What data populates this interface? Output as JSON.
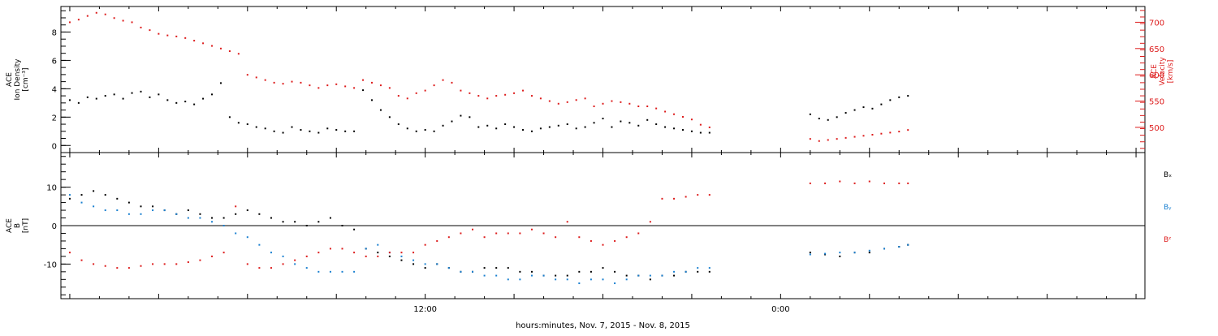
{
  "chart_data": [
    {
      "type": "scatter",
      "panel": "top",
      "ylabel_left": [
        "ACE",
        "Ion Density",
        "[cm⁻³]"
      ],
      "ylabel_right": [
        "ACE",
        "Velocity",
        "[km/s]"
      ],
      "ylim_left": [
        -0.5,
        9.8
      ],
      "ylim_right": [
        452,
        730
      ],
      "yticks_left": [
        "0",
        "2",
        "4",
        "6",
        "8"
      ],
      "yticks_right": [
        "500",
        "550",
        "600",
        "650",
        "700"
      ],
      "series": [
        {
          "color": "#000000",
          "axis": "left",
          "x": [
            0.0,
            0.3,
            0.6,
            0.9,
            1.2,
            1.5,
            1.8,
            2.1,
            2.4,
            2.7,
            3.0,
            3.3,
            3.6,
            3.9,
            4.2,
            4.5,
            4.8,
            5.1,
            5.4,
            5.7,
            6.0,
            6.3,
            6.6,
            6.9,
            7.2,
            7.5,
            7.8,
            8.1,
            8.4,
            8.7,
            9.0,
            9.3,
            9.6,
            9.9,
            10.2,
            10.5,
            10.8,
            11.1,
            11.4,
            11.7,
            12.0,
            12.3,
            12.6,
            12.9,
            13.2,
            13.5,
            13.8,
            14.1,
            14.4,
            14.7,
            15.0,
            15.3,
            15.6,
            15.9,
            16.2,
            16.5,
            16.8,
            17.1,
            17.4,
            17.7,
            18.0,
            18.3,
            18.6,
            18.9,
            19.2,
            19.5,
            19.8,
            20.1,
            20.4,
            20.7,
            21.0,
            21.3,
            21.6,
            25.0,
            25.3,
            25.6,
            25.9,
            26.2,
            26.5,
            26.8,
            27.1,
            27.4,
            27.7,
            28.0,
            28.3
          ],
          "values": [
            3.2,
            3.0,
            3.4,
            3.3,
            3.5,
            3.6,
            3.3,
            3.7,
            3.8,
            3.4,
            3.6,
            3.2,
            3.0,
            3.1,
            2.9,
            3.3,
            3.6,
            4.4,
            2.0,
            1.6,
            1.5,
            1.3,
            1.2,
            1.0,
            0.9,
            1.3,
            1.1,
            1.0,
            0.9,
            1.2,
            1.1,
            1.0,
            1.0,
            3.9,
            3.2,
            2.5,
            2.0,
            1.5,
            1.2,
            1.0,
            1.1,
            1.0,
            1.4,
            1.7,
            2.1,
            2.0,
            1.3,
            1.4,
            1.2,
            1.5,
            1.3,
            1.1,
            1.0,
            1.2,
            1.3,
            1.4,
            1.5,
            1.2,
            1.3,
            1.6,
            1.9,
            1.3,
            1.7,
            1.6,
            1.4,
            1.8,
            1.5,
            1.3,
            1.2,
            1.1,
            1.0,
            0.9,
            0.9,
            2.2,
            1.9,
            1.8,
            2.0,
            2.3,
            2.5,
            2.7,
            2.6,
            2.9,
            3.2,
            3.4,
            3.5
          ]
        },
        {
          "color": "#dd1c1c",
          "axis": "right",
          "x": [
            0.0,
            0.3,
            0.6,
            0.9,
            1.2,
            1.5,
            1.8,
            2.1,
            2.4,
            2.7,
            3.0,
            3.3,
            3.6,
            3.9,
            4.2,
            4.5,
            4.8,
            5.1,
            5.4,
            5.7,
            6.0,
            6.3,
            6.6,
            6.9,
            7.2,
            7.5,
            7.8,
            8.1,
            8.4,
            8.7,
            9.0,
            9.3,
            9.6,
            9.9,
            10.2,
            10.5,
            10.8,
            11.1,
            11.4,
            11.7,
            12.0,
            12.3,
            12.6,
            12.9,
            13.2,
            13.5,
            13.8,
            14.1,
            14.4,
            14.7,
            15.0,
            15.3,
            15.6,
            15.9,
            16.2,
            16.5,
            16.8,
            17.1,
            17.4,
            17.7,
            18.0,
            18.3,
            18.6,
            18.9,
            19.2,
            19.5,
            19.8,
            20.1,
            20.4,
            20.7,
            21.0,
            21.3,
            21.6,
            25.0,
            25.3,
            25.6,
            25.9,
            26.2,
            26.5,
            26.8,
            27.1,
            27.4,
            27.7,
            28.0,
            28.3
          ],
          "values": [
            700,
            705,
            712,
            718,
            715,
            708,
            703,
            700,
            690,
            685,
            678,
            675,
            673,
            670,
            665,
            660,
            655,
            650,
            645,
            640,
            600,
            595,
            590,
            585,
            583,
            587,
            585,
            580,
            575,
            580,
            582,
            578,
            575,
            590,
            585,
            580,
            575,
            560,
            555,
            565,
            570,
            580,
            590,
            585,
            570,
            565,
            560,
            555,
            560,
            562,
            565,
            570,
            560,
            555,
            550,
            545,
            548,
            552,
            555,
            540,
            545,
            550,
            548,
            545,
            540,
            540,
            536,
            530,
            525,
            520,
            515,
            505,
            500,
            478,
            474,
            476,
            478,
            480,
            482,
            484,
            486,
            488,
            490,
            492,
            495
          ]
        }
      ]
    },
    {
      "type": "scatter",
      "panel": "bottom",
      "ylabel_left": [
        "ACE",
        "B",
        "[nT]"
      ],
      "ylim": [
        -19,
        19
      ],
      "yticks": [
        "-10",
        "0",
        "10"
      ],
      "legend": [
        "Bₓ",
        "Bᵧ",
        "Bᶻ"
      ],
      "legend_position": "right",
      "series": [
        {
          "name": "Bₓ",
          "color": "#000000",
          "x": [
            0.0,
            0.4,
            0.8,
            1.2,
            1.6,
            2.0,
            2.4,
            2.8,
            3.2,
            3.6,
            4.0,
            4.4,
            4.8,
            5.2,
            5.6,
            6.0,
            6.4,
            6.8,
            7.2,
            7.6,
            8.0,
            8.4,
            8.8,
            9.2,
            9.6,
            10.0,
            10.4,
            10.8,
            11.2,
            11.6,
            12.0,
            12.4,
            12.8,
            13.2,
            13.6,
            14.0,
            14.4,
            14.8,
            15.2,
            15.6,
            16.0,
            16.4,
            16.8,
            17.2,
            17.6,
            18.0,
            18.4,
            18.8,
            19.2,
            19.6,
            20.0,
            20.4,
            20.8,
            21.2,
            21.6,
            25.0,
            25.5,
            26.0,
            26.5,
            27.0,
            27.5,
            28.0,
            28.3
          ],
          "values": [
            7,
            8,
            9,
            8,
            7,
            6,
            5,
            5,
            4,
            3,
            4,
            3,
            2,
            2,
            3,
            4,
            3,
            2,
            1,
            1,
            0,
            1,
            2,
            0,
            -1,
            -6,
            -7,
            -8,
            -9,
            -10,
            -11,
            -10,
            -11,
            -12,
            -12,
            -11,
            -11,
            -11,
            -12,
            -12,
            -13,
            -13,
            -13,
            -12,
            -12,
            -11,
            -12,
            -13,
            -13,
            -14,
            -13,
            -13,
            -12,
            -12,
            -12,
            -7,
            -7.5,
            -8,
            -7,
            -7,
            -6,
            -5.5,
            -5
          ]
        },
        {
          "name": "Bᵧ",
          "color": "#1a80d0",
          "x": [
            0.0,
            0.4,
            0.8,
            1.2,
            1.6,
            2.0,
            2.4,
            2.8,
            3.2,
            3.6,
            4.0,
            4.4,
            4.8,
            5.2,
            5.6,
            6.0,
            6.4,
            6.8,
            7.2,
            7.6,
            8.0,
            8.4,
            8.8,
            9.2,
            9.6,
            10.0,
            10.4,
            10.8,
            11.2,
            11.6,
            12.0,
            12.4,
            12.8,
            13.2,
            13.6,
            14.0,
            14.4,
            14.8,
            15.2,
            15.6,
            16.0,
            16.4,
            16.8,
            17.2,
            17.6,
            18.0,
            18.4,
            18.8,
            19.2,
            19.6,
            20.0,
            20.4,
            20.8,
            21.2,
            21.6,
            25.0,
            25.5,
            26.0,
            26.5,
            27.0,
            27.5,
            28.0,
            28.3
          ],
          "values": [
            8,
            6,
            5,
            4,
            4,
            3,
            3,
            4,
            4,
            3,
            2,
            2,
            1,
            0,
            -2,
            -3,
            -5,
            -7,
            -8,
            -10,
            -11,
            -12,
            -12,
            -12,
            -12,
            -6,
            -5,
            -7,
            -8,
            -9,
            -10,
            -10,
            -11,
            -12,
            -12,
            -13,
            -13,
            -14,
            -14,
            -13,
            -13,
            -14,
            -14,
            -15,
            -14,
            -14,
            -15,
            -14,
            -13,
            -13,
            -13,
            -12,
            -12,
            -11,
            -11,
            -7.5,
            -7.3,
            -7,
            -7,
            -6.5,
            -6,
            -5.5,
            -5
          ]
        },
        {
          "name": "Bᶻ",
          "color": "#dd1c1c",
          "x": [
            0.0,
            0.4,
            0.8,
            1.2,
            1.6,
            2.0,
            2.4,
            2.8,
            3.2,
            3.6,
            4.0,
            4.4,
            4.8,
            5.2,
            5.6,
            6.0,
            6.4,
            6.8,
            7.2,
            7.6,
            8.0,
            8.4,
            8.8,
            9.2,
            9.6,
            10.0,
            10.4,
            10.8,
            11.2,
            11.6,
            12.0,
            12.4,
            12.8,
            13.2,
            13.6,
            14.0,
            14.4,
            14.8,
            15.2,
            15.6,
            16.0,
            16.4,
            16.8,
            17.2,
            17.6,
            18.0,
            18.4,
            18.8,
            19.2,
            19.6,
            20.0,
            20.4,
            20.8,
            21.2,
            21.6,
            25.0,
            25.5,
            26.0,
            26.5,
            27.0,
            27.5,
            28.0,
            28.3
          ],
          "values": [
            -7,
            -9,
            -10,
            -10.5,
            -11,
            -11,
            -10.5,
            -10,
            -10,
            -10,
            -9.5,
            -9,
            -8,
            -7,
            5,
            -10,
            -11,
            -11,
            -10,
            -9,
            -8,
            -7,
            -6,
            -6,
            -7,
            -8,
            -8,
            -7,
            -7,
            -7,
            -5,
            -4,
            -3,
            -2,
            -1,
            -3,
            -2,
            -2,
            -2,
            -1,
            -2,
            -3,
            1,
            -3,
            -4,
            -5,
            -4,
            -3,
            -2,
            1,
            7,
            7,
            7.5,
            8,
            8,
            11,
            11,
            11.5,
            11,
            11.5,
            11,
            11,
            11
          ]
        }
      ]
    },
    {
      "type": "axis",
      "xlabel": "hours:minutes, Nov.  7, 2015 - Nov.  8, 2015",
      "xlim": [
        -0.3,
        36.3
      ],
      "xticks": [
        {
          "at": 12,
          "label": "12:00"
        },
        {
          "at": 24,
          "label": "0:00"
        }
      ]
    }
  ]
}
